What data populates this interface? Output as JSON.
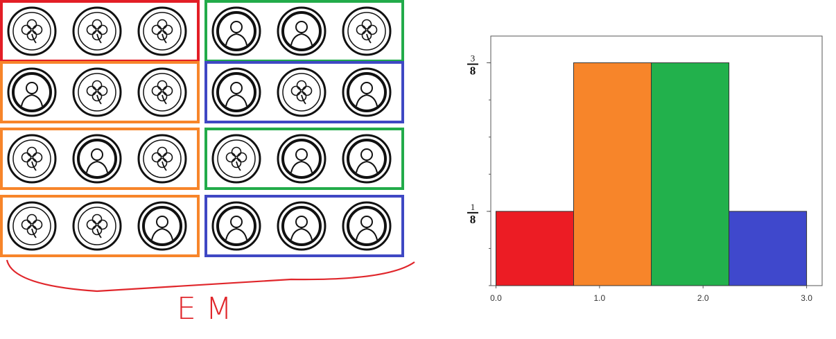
{
  "annotation": {
    "brace_label": "EM",
    "brace_color": "#e0262b"
  },
  "coin_grid": {
    "rows": [
      {
        "left": [
          "clover",
          "clover",
          "clover"
        ],
        "right": [
          "head",
          "head",
          "clover"
        ],
        "left_box": "#e31e26",
        "right_box": "#22ab4a"
      },
      {
        "left": [
          "head",
          "clover",
          "clover"
        ],
        "right": [
          "head",
          "clover",
          "head"
        ],
        "left_box": "#f7852a",
        "right_box": "#3f48c4"
      },
      {
        "left": [
          "clover",
          "head",
          "clover"
        ],
        "right": [
          "clover",
          "head",
          "head"
        ],
        "left_box": "#f7852a",
        "right_box": "#22ab4a"
      },
      {
        "left": [
          "clover",
          "clover",
          "head"
        ],
        "right": [
          "head",
          "head",
          "head"
        ],
        "left_box": "#f7852a",
        "right_box": "#3f48c4"
      }
    ]
  },
  "chart_data": {
    "type": "bar",
    "x_ticks": [
      "0.0",
      "1.0",
      "2.0",
      "3.0"
    ],
    "x_tick_values": [
      0,
      1,
      2,
      3
    ],
    "xlim": [
      -0.05,
      3.15
    ],
    "ylim": [
      0,
      0.42
    ],
    "y_tick_labels": [
      {
        "value": 0.125,
        "numerator": "1",
        "denominator": "8"
      },
      {
        "value": 0.375,
        "numerator": "3",
        "denominator": "8"
      }
    ],
    "bars": [
      {
        "x0": 0.0,
        "x1": 0.75,
        "value": 0.125,
        "color": "#ec1c24"
      },
      {
        "x0": 0.75,
        "x1": 1.5,
        "value": 0.375,
        "color": "#f7852a"
      },
      {
        "x0": 1.5,
        "x1": 2.25,
        "value": 0.375,
        "color": "#22b14c"
      },
      {
        "x0": 2.25,
        "x1": 3.0,
        "value": 0.125,
        "color": "#3f48cc"
      }
    ],
    "grid": false,
    "title": "",
    "xlabel": "",
    "ylabel": ""
  }
}
